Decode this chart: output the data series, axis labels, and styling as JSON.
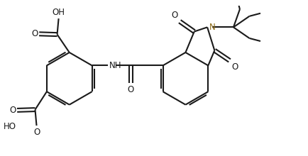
{
  "bg_color": "#ffffff",
  "line_color": "#1a1a1a",
  "N_color": "#8B6914",
  "lw": 1.5,
  "fs": 8.5,
  "fig_w": 4.34,
  "fig_h": 2.2,
  "dpi": 100,
  "xlim": [
    0,
    10.5
  ],
  "ylim": [
    0,
    5.0
  ]
}
